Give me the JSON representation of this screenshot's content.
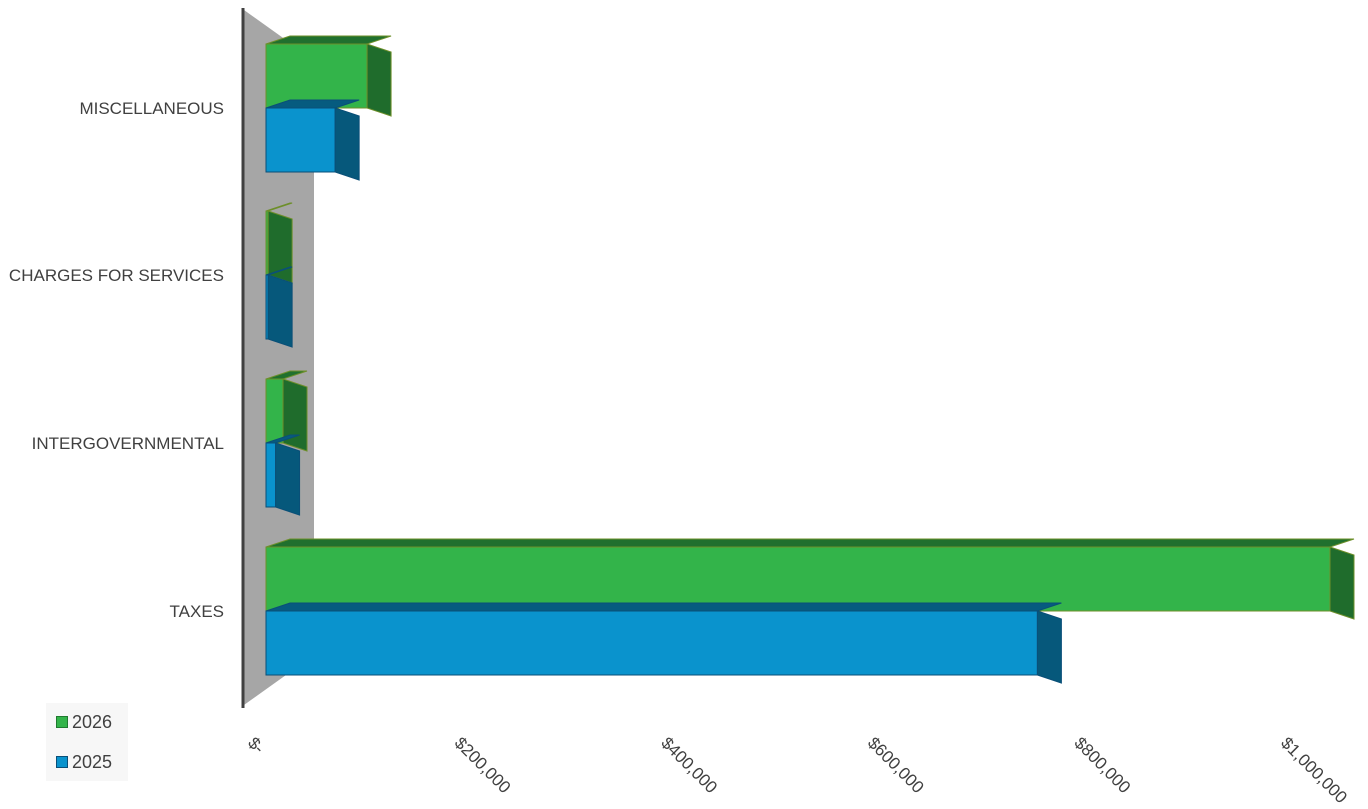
{
  "chart_data": {
    "type": "bar",
    "orientation": "horizontal",
    "style": "3d",
    "categories": [
      "TAXES",
      "INTERGOVERNMENTAL",
      "CHARGES FOR SERVICES",
      "MISCELLANEOUS"
    ],
    "series": [
      {
        "name": "2025",
        "values": [
          725000,
          9000,
          2000,
          65000
        ],
        "color": "#0A93CD"
      },
      {
        "name": "2026",
        "values": [
          1033000,
          16000,
          2000,
          95000
        ],
        "color": "#33B44A"
      }
    ],
    "xlim": [
      0,
      1000000
    ],
    "x_ticks": [
      "$-",
      "$200,000",
      "$400,000",
      "$600,000",
      "$800,000",
      "$1,000,000"
    ],
    "x_tick_values": [
      0,
      200000,
      400000,
      600000,
      800000,
      1000000
    ],
    "legend": {
      "position": "bottom-left",
      "entries": [
        "2026",
        "2025"
      ]
    },
    "grid": false
  }
}
